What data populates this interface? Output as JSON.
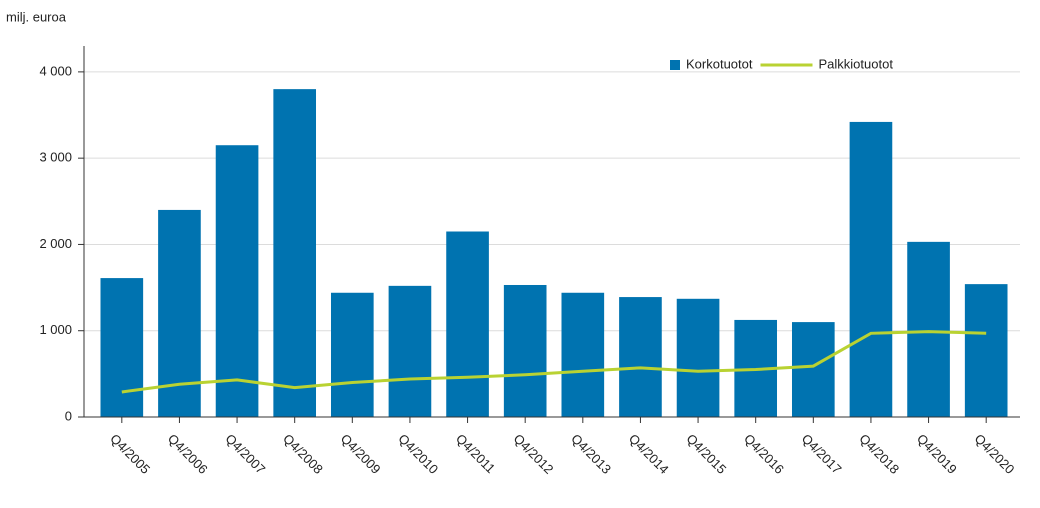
{
  "chart_data": {
    "type": "bar_line",
    "y_axis_label": "milj. euroa",
    "categories": [
      "Q4/2005",
      "Q4/2006",
      "Q4/2007",
      "Q4/2008",
      "Q4/2009",
      "Q4/2010",
      "Q4/2011",
      "Q4/2012",
      "Q4/2013",
      "Q4/2014",
      "Q4/2015",
      "Q4/2016",
      "Q4/2017",
      "Q4/2018",
      "Q4/2019",
      "Q4/2020"
    ],
    "series": [
      {
        "name": "Korkotuotot",
        "type": "bar",
        "color": "#0073b0",
        "values": [
          1610,
          2400,
          3150,
          3800,
          1440,
          1520,
          2150,
          1530,
          1440,
          1390,
          1370,
          1125,
          1100,
          3420,
          2030,
          1540
        ]
      },
      {
        "name": "Palkkiotuotot",
        "type": "line",
        "color": "#b9d232",
        "values": [
          290,
          380,
          430,
          340,
          400,
          440,
          460,
          490,
          530,
          570,
          530,
          550,
          590,
          970,
          990,
          970
        ]
      }
    ],
    "ylim": [
      0,
      4300
    ],
    "yticks": [
      0,
      {
        "value": 1000,
        "label": "1 000"
      },
      {
        "value": 2000,
        "label": "2 000"
      },
      {
        "value": 3000,
        "label": "3 000"
      },
      {
        "value": 4000,
        "label": "4 000"
      }
    ],
    "grid": true,
    "legend": "top-right"
  }
}
